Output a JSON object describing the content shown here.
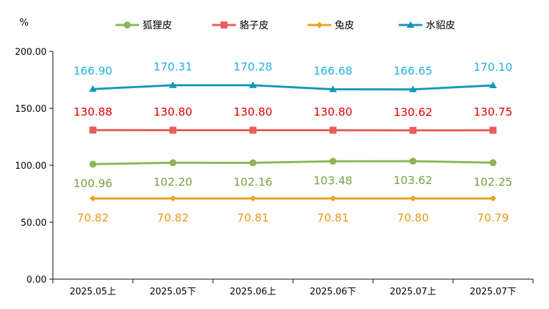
{
  "chart_data": {
    "type": "line",
    "unit": "%",
    "categories": [
      "2025.05上",
      "2025.05下",
      "2025.06上",
      "2025.06下",
      "2025.07上",
      "2025.07下"
    ],
    "ylim": [
      0,
      200
    ],
    "yticks": [
      "0.00",
      "50.00",
      "100.00",
      "150.00",
      "200.00"
    ],
    "legend_position": "top",
    "grid": false,
    "series": [
      {
        "name": "狐狸皮",
        "color": "#8db654",
        "label_color": "#76a13e",
        "marker": "circle",
        "label_pos": "below",
        "values": [
          100.96,
          102.2,
          102.16,
          103.48,
          103.62,
          102.25
        ],
        "labels": [
          "100.96",
          "102.20",
          "102.16",
          "103.48",
          "103.62",
          "102.25"
        ]
      },
      {
        "name": "貉子皮",
        "color": "#e85c5a",
        "label_color": "#e40000",
        "marker": "square",
        "label_pos": "above",
        "values": [
          130.88,
          130.8,
          130.8,
          130.8,
          130.62,
          130.75
        ],
        "labels": [
          "130.88",
          "130.80",
          "130.80",
          "130.80",
          "130.62",
          "130.75"
        ]
      },
      {
        "name": "兔皮",
        "color": "#e8a21e",
        "label_color": "#e89a1a",
        "marker": "diamond",
        "label_pos": "below",
        "values": [
          70.82,
          70.82,
          70.81,
          70.81,
          70.8,
          70.79
        ],
        "labels": [
          "70.82",
          "70.82",
          "70.81",
          "70.81",
          "70.80",
          "70.79"
        ]
      },
      {
        "name": "水貂皮",
        "color": "#1597bb",
        "label_color": "#23b1e0",
        "marker": "triangle",
        "label_pos": "above",
        "values": [
          166.9,
          170.31,
          170.28,
          166.68,
          166.65,
          170.1
        ],
        "labels": [
          "166.90",
          "170.31",
          "170.28",
          "166.68",
          "166.65",
          "170.10"
        ]
      }
    ]
  }
}
